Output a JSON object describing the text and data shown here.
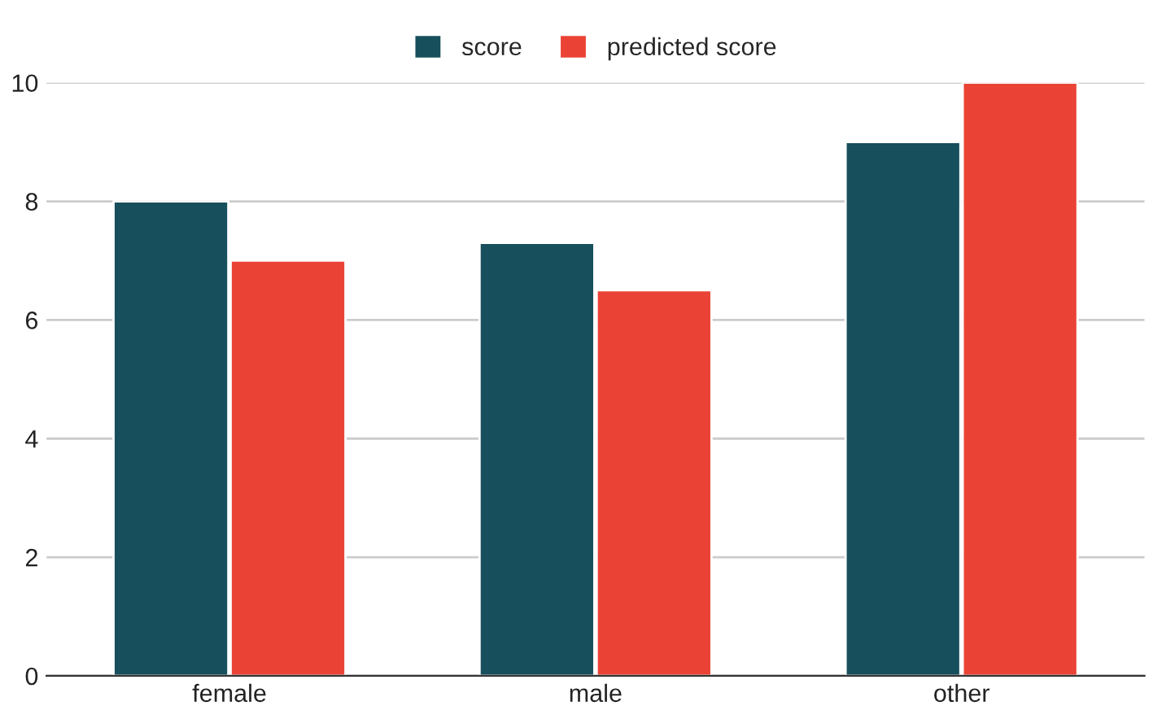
{
  "chart_data": {
    "type": "bar",
    "categories": [
      "female",
      "male",
      "other"
    ],
    "series": [
      {
        "name": "score",
        "color": "#174f5c",
        "values": [
          8.0,
          7.3,
          9.0
        ]
      },
      {
        "name": "predicted score",
        "color": "#ea4335",
        "values": [
          7.0,
          6.5,
          10.0
        ]
      }
    ],
    "ylim": [
      0,
      10
    ],
    "yticks": [
      0,
      2,
      4,
      6,
      8,
      10
    ],
    "grid": "y",
    "legend": "top"
  }
}
